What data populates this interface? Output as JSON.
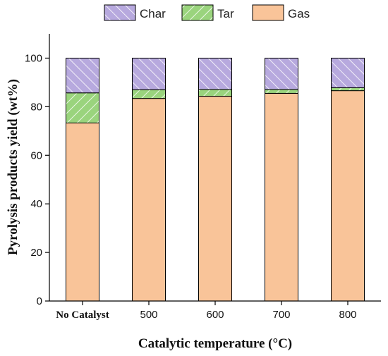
{
  "chart_data": {
    "type": "bar",
    "stacked": true,
    "xlabel": "Catalytic temperature (°C)",
    "ylabel": "Pyrolysis products yield (wt%)",
    "ylim": [
      0,
      110
    ],
    "yticks": [
      0,
      20,
      40,
      60,
      80,
      100
    ],
    "categories": [
      "No Catalyst",
      "500",
      "600",
      "700",
      "800"
    ],
    "series": [
      {
        "name": "Gas",
        "values": [
          73.3,
          83.4,
          84.3,
          85.5,
          86.6
        ],
        "color": "#f9c499",
        "hatch": "none"
      },
      {
        "name": "Tar",
        "values": [
          12.4,
          3.6,
          2.8,
          1.6,
          1.2
        ],
        "color": "#9ad47d",
        "hatch": "forward"
      },
      {
        "name": "Char",
        "values": [
          14.3,
          13.0,
          12.9,
          12.9,
          12.2
        ],
        "color": "#b7a9de",
        "hatch": "backward"
      }
    ],
    "legend": {
      "position": "top",
      "order": [
        "Char",
        "Tar",
        "Gas"
      ]
    },
    "grid": false
  }
}
